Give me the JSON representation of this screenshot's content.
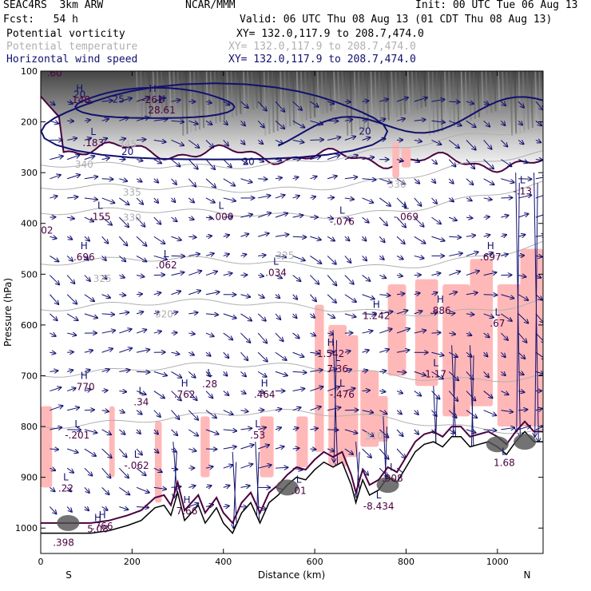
{
  "header": {
    "model": "SEAC4RS  3km ARW",
    "org": "NCAR/MMM",
    "init": "Init: 00 UTC Tue 06 Aug 13",
    "fcst": "Fcst:   54 h",
    "valid": "Valid: 06 UTC Thu 08 Aug 13 (01 CDT Thu 08 Aug 13)",
    "fields": [
      {
        "name": "Potential vorticity",
        "xy": "XY= 132.0,117.9 to 208.7,474.0",
        "color": "#000000"
      },
      {
        "name": "Potential temperature",
        "xy": "XY= 132.0,117.9 to 208.7,474.0",
        "color": "#b0b0b0"
      },
      {
        "name": "Horizontal wind speed",
        "xy": "XY= 132.0,117.9 to 208.7,474.0",
        "color": "#101070"
      }
    ]
  },
  "chart_data": {
    "type": "cross-section",
    "xlabel": "Distance (km)",
    "ylabel": "Pressure (hPa)",
    "xlim": [
      0,
      1100
    ],
    "ylim": [
      1050,
      100
    ],
    "x_ticks": [
      0,
      200,
      400,
      600,
      800,
      1000
    ],
    "y_ticks": [
      100,
      200,
      300,
      400,
      500,
      600,
      700,
      800,
      900,
      1000
    ],
    "x_end_labels": [
      "S",
      "N"
    ],
    "colors": {
      "pv_fill": "#ffb8b8",
      "theta": "#b0b0b0",
      "wind": "#101070",
      "pv_dark": "#4a0040",
      "terrain": "#000000"
    },
    "theta_labels": [
      {
        "label": "340",
        "x": 95,
        "p": 290
      },
      {
        "label": "335",
        "x": 200,
        "p": 345
      },
      {
        "label": "330",
        "x": 200,
        "p": 395
      },
      {
        "label": "325",
        "x": 135,
        "p": 515
      },
      {
        "label": "325",
        "x": 535,
        "p": 470
      },
      {
        "label": "320",
        "x": 270,
        "p": 585
      },
      {
        "label": "330",
        "x": 780,
        "p": 330
      },
      {
        "label": "310",
        "x": 730,
        "p": 825
      },
      {
        "label": "345",
        "x": 190,
        "p": 250
      }
    ],
    "wind_labels": [
      {
        "label": "20",
        "x": 85,
        "p": 153
      },
      {
        "label": "25",
        "x": 170,
        "p": 162
      },
      {
        "label": "20",
        "x": 190,
        "p": 265
      },
      {
        "label": "20",
        "x": 455,
        "p": 285
      },
      {
        "label": "20",
        "x": 710,
        "p": 225
      }
    ],
    "extrema": [
      {
        "kind": "H",
        "value": ".148",
        "x": 85,
        "p": 160
      },
      {
        "kind": "L",
        "value": ".183",
        "x": 115,
        "p": 245
      },
      {
        "kind": "L",
        "value": ".155",
        "x": 130,
        "p": 390
      },
      {
        "kind": "L",
        "value": "-.000",
        "x": 395,
        "p": 390
      },
      {
        "kind": "L",
        "value": "-.076",
        "x": 660,
        "p": 400
      },
      {
        "kind": "L",
        "value": "-.069",
        "x": 800,
        "p": 390
      },
      {
        "kind": "H",
        "value": ".696",
        "x": 95,
        "p": 470
      },
      {
        "kind": "L",
        "value": ".062",
        "x": 275,
        "p": 485
      },
      {
        "kind": "L",
        "value": ".034",
        "x": 515,
        "p": 500
      },
      {
        "kind": "H",
        "value": ".697",
        "x": 985,
        "p": 470
      },
      {
        "kind": "H",
        "value": "1.242",
        "x": 735,
        "p": 585
      },
      {
        "kind": "H",
        "value": ".886",
        "x": 875,
        "p": 575
      },
      {
        "kind": "L",
        "value": ".67",
        "x": 1000,
        "p": 600
      },
      {
        "kind": "H",
        "value": "1.542",
        "x": 635,
        "p": 660
      },
      {
        "kind": "L",
        "value": "7.36",
        "x": 650,
        "p": 690
      },
      {
        "kind": "L",
        "value": "-.476",
        "x": 660,
        "p": 740
      },
      {
        "kind": "L",
        "value": "1.17",
        "x": 865,
        "p": 700
      },
      {
        "kind": "H",
        "value": ".770",
        "x": 95,
        "p": 725
      },
      {
        "kind": "L",
        "value": ".34",
        "x": 220,
        "p": 755
      },
      {
        "kind": "H",
        "value": ".762",
        "x": 315,
        "p": 740
      },
      {
        "kind": "L",
        "value": ".28",
        "x": 370,
        "p": 720
      },
      {
        "kind": "H",
        "value": ".464",
        "x": 490,
        "p": 740
      },
      {
        "kind": "L",
        "value": "-.201",
        "x": 80,
        "p": 820
      },
      {
        "kind": "L",
        "value": ".53",
        "x": 475,
        "p": 820
      },
      {
        "kind": "L",
        "value": "-.062",
        "x": 210,
        "p": 880
      },
      {
        "kind": "L",
        "value": ".22",
        "x": 55,
        "p": 925
      },
      {
        "kind": "L",
        "value": ".01",
        "x": 565,
        "p": 930
      },
      {
        "kind": "L",
        "value": "1.68",
        "x": 1015,
        "p": 875
      },
      {
        "kind": "L",
        "value": "-8.434",
        "x": 740,
        "p": 960
      },
      {
        "kind": "H",
        "value": "7.66",
        "x": 320,
        "p": 970
      },
      {
        "kind": "H",
        "value": ".766",
        "x": 135,
        "p": 1000
      },
      {
        "kind": "H",
        "value": "5.08",
        "x": 125,
        "p": 1005
      },
      {
        "kind": "L",
        "value": ".908",
        "x": 770,
        "p": 905
      },
      {
        "kind": "L",
        "value": "-.13",
        "x": 1055,
        "p": 340
      },
      {
        "kind": "H",
        "value": "-261",
        "x": 245,
        "p": 160
      },
      {
        "kind": "H",
        "value": "28.61",
        "x": 265,
        "p": 180
      }
    ],
    "edge_labels": [
      {
        "label": ".60",
        "x": 30,
        "p": 110
      },
      {
        "label": "-02",
        "x": 10,
        "p": 420
      },
      {
        "label": ".398",
        "x": 50,
        "p": 1035
      }
    ],
    "terrain": [
      [
        0,
        1010
      ],
      [
        60,
        1010
      ],
      [
        110,
        1010
      ],
      [
        150,
        1005
      ],
      [
        190,
        995
      ],
      [
        220,
        985
      ],
      [
        250,
        960
      ],
      [
        270,
        955
      ],
      [
        285,
        975
      ],
      [
        300,
        930
      ],
      [
        315,
        985
      ],
      [
        330,
        970
      ],
      [
        345,
        955
      ],
      [
        360,
        990
      ],
      [
        385,
        960
      ],
      [
        400,
        990
      ],
      [
        420,
        1010
      ],
      [
        440,
        970
      ],
      [
        460,
        950
      ],
      [
        480,
        990
      ],
      [
        500,
        950
      ],
      [
        520,
        935
      ],
      [
        540,
        915
      ],
      [
        560,
        900
      ],
      [
        580,
        905
      ],
      [
        600,
        885
      ],
      [
        620,
        870
      ],
      [
        640,
        880
      ],
      [
        660,
        870
      ],
      [
        680,
        915
      ],
      [
        690,
        950
      ],
      [
        705,
        905
      ],
      [
        720,
        935
      ],
      [
        740,
        925
      ],
      [
        760,
        900
      ],
      [
        780,
        910
      ],
      [
        800,
        880
      ],
      [
        820,
        850
      ],
      [
        840,
        835
      ],
      [
        860,
        830
      ],
      [
        880,
        840
      ],
      [
        900,
        820
      ],
      [
        920,
        820
      ],
      [
        940,
        840
      ],
      [
        960,
        835
      ],
      [
        980,
        830
      ],
      [
        1000,
        840
      ],
      [
        1020,
        855
      ],
      [
        1040,
        830
      ],
      [
        1060,
        810
      ],
      [
        1080,
        830
      ],
      [
        1100,
        830
      ]
    ]
  }
}
